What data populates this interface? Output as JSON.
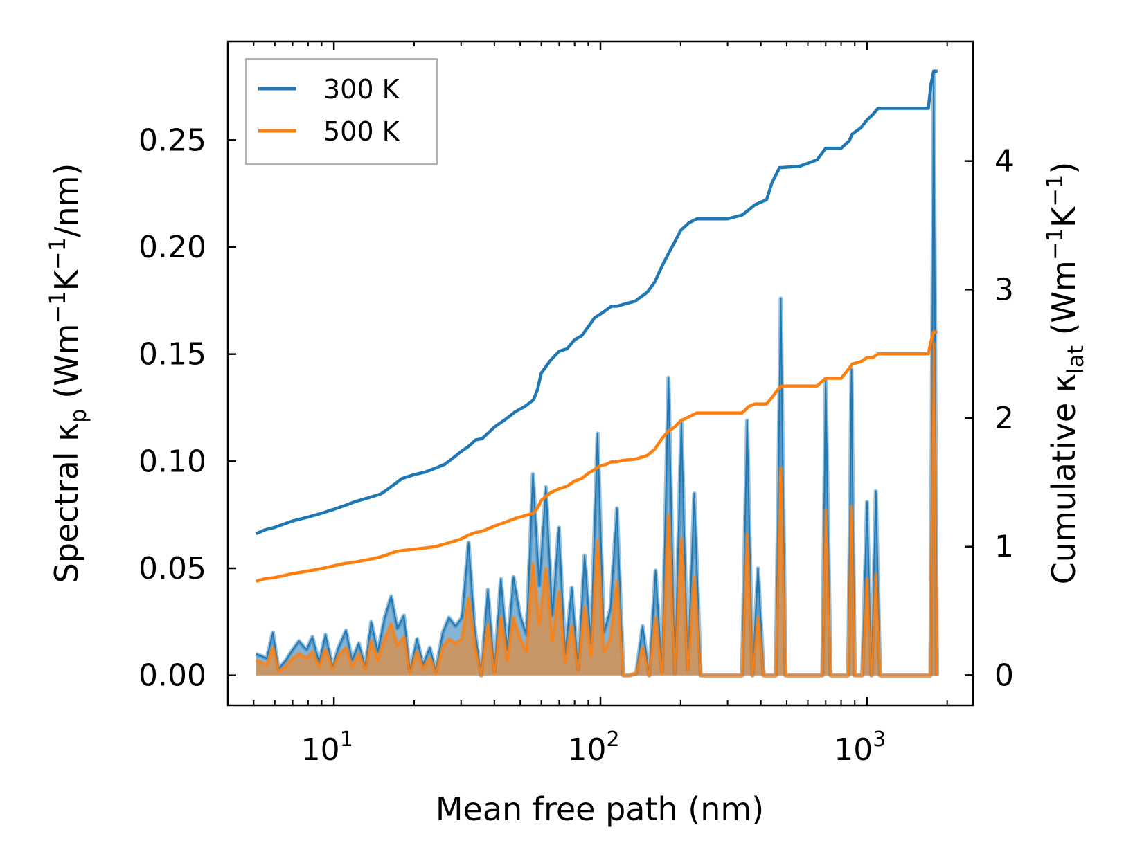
{
  "chart_data": {
    "type": "line",
    "title": "",
    "xlabel": "Mean free path (nm)",
    "xscale": "log",
    "xlim": [
      4,
      2500
    ],
    "x_ticks": [
      {
        "base": "10",
        "exp": "1",
        "value": 10
      },
      {
        "base": "10",
        "exp": "2",
        "value": 100
      },
      {
        "base": "10",
        "exp": "3",
        "value": 1000
      }
    ],
    "ylabel_left": {
      "pre": "Spectral κ",
      "sub": "p",
      "mid": " (Wm",
      "sup1": "−1",
      "mid2": "K",
      "sup2": "−1",
      "post": "/nm)"
    },
    "ylim_left": [
      -0.014,
      0.296
    ],
    "y_ticks_left": [
      "0.00",
      "0.05",
      "0.10",
      "0.15",
      "0.20",
      "0.25"
    ],
    "ylabel_right": {
      "pre": "Cumulative κ",
      "sub": "lat",
      "mid": " (Wm",
      "sup1": "−1",
      "mid2": "K",
      "sup2": "−1",
      "post": ")"
    },
    "ylim_right": [
      -0.235,
      4.93
    ],
    "y_ticks_right": [
      "0",
      "1",
      "2",
      "3",
      "4"
    ],
    "legend": {
      "location": "upper-left",
      "entries": [
        "300 K",
        "500 K"
      ]
    },
    "colors": {
      "300 K": "#1f77b4",
      "500 K": "#ff7f0e",
      "frame": "#000000"
    },
    "spectral_series": [
      {
        "name": "300 K",
        "axis": "left",
        "x": [
          5.1,
          5.6,
          5.9,
          6.2,
          6.6,
          7.0,
          7.4,
          7.9,
          8.3,
          8.8,
          9.3,
          9.9,
          10.4,
          11.1,
          11.7,
          12.4,
          13.1,
          13.8,
          14.6,
          15.5,
          16.4,
          17.3,
          18.3,
          19.3,
          20.5,
          21.6,
          22.9,
          24.1,
          25.6,
          27.0,
          28.6,
          30.2,
          32.0,
          33.8,
          35.7,
          37.8,
          40.0,
          42.3,
          44.7,
          47.2,
          50.0,
          52.8,
          55.8,
          59.0,
          62.4,
          66.0,
          69.8,
          73.8,
          78.0,
          82.5,
          87.2,
          92.2,
          97.5,
          103.0,
          109.0,
          115.3,
          121.9,
          128.9,
          136.2,
          144.0,
          152.3,
          161.0,
          170.2,
          180.0,
          190.3,
          201.2,
          212.7,
          224.9,
          237.8,
          251.4,
          340.0,
          355.0,
          372.0,
          390.0,
          410.0,
          430.0,
          455.0,
          475.0,
          495.0,
          520.0,
          650.0,
          680.0,
          700.0,
          730.0,
          850.0,
          875.0,
          900.0,
          960.0,
          1000.0,
          1040.0,
          1080.0,
          1120.0,
          1200.0,
          1680.0,
          1730.0,
          1780.0,
          1830.0
        ],
        "y": [
          0.01,
          0.008,
          0.02,
          0.003,
          0.007,
          0.012,
          0.016,
          0.012,
          0.018,
          0.006,
          0.019,
          0.004,
          0.013,
          0.021,
          0.007,
          0.015,
          0.004,
          0.025,
          0.011,
          0.027,
          0.037,
          0.022,
          0.028,
          0.002,
          0.017,
          0.005,
          0.013,
          0.002,
          0.02,
          0.027,
          0.023,
          0.027,
          0.062,
          0.021,
          0.0,
          0.04,
          0.002,
          0.045,
          0.012,
          0.046,
          0.028,
          0.019,
          0.094,
          0.042,
          0.088,
          0.028,
          0.069,
          0.01,
          0.041,
          0.003,
          0.056,
          0.015,
          0.113,
          0.02,
          0.031,
          0.078,
          0.0,
          0.0,
          0.001,
          0.023,
          0.0,
          0.049,
          0.002,
          0.139,
          0.001,
          0.118,
          0.003,
          0.085,
          0.0,
          0.0,
          0.0,
          0.119,
          0.0,
          0.05,
          0.0,
          0.0,
          0.0,
          0.176,
          0.0,
          0.0,
          0.0,
          0.0,
          0.138,
          0.0,
          0.0,
          0.143,
          0.0,
          0.0,
          0.081,
          0.0,
          0.086,
          0.0,
          0.0,
          0.0,
          0.0,
          0.281,
          0.0
        ]
      },
      {
        "name": "500 K",
        "axis": "left",
        "x": [
          5.1,
          5.6,
          5.9,
          6.2,
          6.6,
          7.0,
          7.4,
          7.9,
          8.3,
          8.8,
          9.3,
          9.9,
          10.4,
          11.1,
          11.7,
          12.4,
          13.1,
          13.8,
          14.6,
          15.5,
          16.4,
          17.3,
          18.3,
          19.3,
          20.5,
          21.6,
          22.9,
          24.1,
          25.6,
          27.0,
          28.6,
          30.2,
          32.0,
          33.8,
          35.7,
          37.8,
          40.0,
          42.3,
          44.7,
          47.2,
          50.0,
          52.8,
          55.8,
          59.0,
          62.4,
          66.0,
          69.8,
          73.8,
          78.0,
          82.5,
          87.2,
          92.2,
          97.5,
          103.0,
          109.0,
          115.3,
          121.9,
          128.9,
          136.2,
          144.0,
          152.3,
          161.0,
          170.2,
          180.0,
          190.3,
          201.2,
          212.7,
          224.9,
          237.8,
          251.4,
          340.0,
          355.0,
          372.0,
          390.0,
          410.0,
          430.0,
          455.0,
          475.0,
          495.0,
          520.0,
          650.0,
          680.0,
          700.0,
          730.0,
          850.0,
          875.0,
          900.0,
          960.0,
          1000.0,
          1040.0,
          1080.0,
          1120.0,
          1200.0,
          1680.0,
          1730.0,
          1780.0,
          1830.0
        ],
        "y": [
          0.007,
          0.005,
          0.013,
          0.002,
          0.004,
          0.008,
          0.01,
          0.008,
          0.011,
          0.004,
          0.012,
          0.003,
          0.009,
          0.013,
          0.004,
          0.01,
          0.003,
          0.016,
          0.007,
          0.017,
          0.024,
          0.014,
          0.018,
          0.001,
          0.011,
          0.003,
          0.008,
          0.001,
          0.013,
          0.017,
          0.015,
          0.017,
          0.036,
          0.013,
          0.0,
          0.024,
          0.001,
          0.027,
          0.007,
          0.027,
          0.017,
          0.011,
          0.052,
          0.024,
          0.05,
          0.016,
          0.039,
          0.006,
          0.023,
          0.002,
          0.032,
          0.009,
          0.063,
          0.011,
          0.017,
          0.044,
          0.0,
          0.0,
          0.001,
          0.013,
          0.0,
          0.027,
          0.001,
          0.075,
          0.001,
          0.064,
          0.002,
          0.046,
          0.0,
          0.0,
          0.0,
          0.066,
          0.0,
          0.027,
          0.0,
          0.0,
          0.0,
          0.097,
          0.0,
          0.0,
          0.0,
          0.0,
          0.077,
          0.0,
          0.0,
          0.079,
          0.0,
          0.0,
          0.045,
          0.0,
          0.047,
          0.0,
          0.0,
          0.0,
          0.0,
          0.155,
          0.0
        ]
      }
    ],
    "cumulative_series": [
      {
        "name": "300 K",
        "axis": "right",
        "x": [
          5.1,
          5.5,
          6.0,
          7.0,
          8.0,
          9.0,
          10.0,
          11.0,
          12.0,
          13.5,
          15.0,
          16.0,
          17.0,
          18.0,
          20.0,
          22.0,
          24.0,
          26.0,
          28.0,
          30.0,
          32.0,
          34.0,
          36.0,
          40.0,
          44.0,
          48.0,
          52.0,
          56.0,
          58.0,
          60.0,
          65.0,
          70.0,
          75.0,
          80.0,
          85.0,
          90.0,
          95.0,
          100.0,
          105.0,
          110.0,
          115.0,
          120.0,
          135.0,
          150.0,
          160.0,
          170.0,
          180.0,
          190.0,
          200.0,
          215.0,
          230.0,
          260.0,
          300.0,
          340.0,
          360.0,
          380.0,
          420.0,
          440.0,
          470.0,
          480.0,
          560.0,
          650.0,
          700.0,
          800.0,
          860.0,
          880.0,
          950.0,
          1000.0,
          1050.0,
          1100.0,
          1200.0,
          1500.0,
          1700.0,
          1740.0,
          1780.0,
          1840.0
        ],
        "y": [
          1.1,
          1.13,
          1.15,
          1.2,
          1.23,
          1.26,
          1.29,
          1.32,
          1.35,
          1.38,
          1.41,
          1.45,
          1.49,
          1.53,
          1.56,
          1.58,
          1.61,
          1.64,
          1.69,
          1.74,
          1.78,
          1.83,
          1.84,
          1.93,
          1.99,
          2.05,
          2.09,
          2.14,
          2.22,
          2.35,
          2.45,
          2.52,
          2.54,
          2.61,
          2.64,
          2.71,
          2.78,
          2.81,
          2.84,
          2.87,
          2.87,
          2.88,
          2.91,
          2.98,
          3.06,
          3.18,
          3.28,
          3.37,
          3.46,
          3.52,
          3.55,
          3.55,
          3.55,
          3.58,
          3.62,
          3.66,
          3.7,
          3.83,
          3.95,
          3.95,
          3.96,
          4.01,
          4.1,
          4.1,
          4.16,
          4.21,
          4.26,
          4.32,
          4.36,
          4.41,
          4.41,
          4.41,
          4.41,
          4.6,
          4.7,
          4.7
        ]
      },
      {
        "name": "500 K",
        "axis": "right",
        "x": [
          5.1,
          5.5,
          6.0,
          7.0,
          8.0,
          9.0,
          10.0,
          11.0,
          12.0,
          13.5,
          15.0,
          16.0,
          17.0,
          18.0,
          20.0,
          22.0,
          24.0,
          26.0,
          28.0,
          30.0,
          32.0,
          34.0,
          36.0,
          40.0,
          44.0,
          48.0,
          52.0,
          56.0,
          58.0,
          60.0,
          65.0,
          70.0,
          75.0,
          80.0,
          85.0,
          90.0,
          95.0,
          100.0,
          105.0,
          110.0,
          115.0,
          120.0,
          135.0,
          150.0,
          160.0,
          170.0,
          180.0,
          190.0,
          200.0,
          215.0,
          230.0,
          260.0,
          300.0,
          340.0,
          360.0,
          380.0,
          420.0,
          440.0,
          470.0,
          480.0,
          560.0,
          650.0,
          700.0,
          800.0,
          860.0,
          880.0,
          950.0,
          1000.0,
          1050.0,
          1100.0,
          1200.0,
          1500.0,
          1700.0,
          1740.0,
          1780.0,
          1840.0
        ],
        "y": [
          0.73,
          0.75,
          0.76,
          0.79,
          0.81,
          0.83,
          0.85,
          0.87,
          0.88,
          0.9,
          0.92,
          0.94,
          0.96,
          0.97,
          0.98,
          0.99,
          1.0,
          1.02,
          1.04,
          1.06,
          1.09,
          1.11,
          1.12,
          1.16,
          1.19,
          1.22,
          1.24,
          1.26,
          1.3,
          1.36,
          1.42,
          1.45,
          1.47,
          1.51,
          1.53,
          1.57,
          1.6,
          1.63,
          1.64,
          1.66,
          1.66,
          1.67,
          1.68,
          1.71,
          1.76,
          1.84,
          1.9,
          1.93,
          1.98,
          2.01,
          2.04,
          2.04,
          2.04,
          2.04,
          2.09,
          2.11,
          2.11,
          2.16,
          2.24,
          2.25,
          2.25,
          2.25,
          2.31,
          2.31,
          2.39,
          2.42,
          2.44,
          2.47,
          2.47,
          2.5,
          2.5,
          2.5,
          2.5,
          2.6,
          2.67,
          2.67
        ]
      }
    ]
  }
}
